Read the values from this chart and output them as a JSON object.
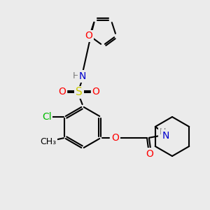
{
  "bg_color": "#ebebeb",
  "bond_color": "#000000",
  "colors": {
    "O": "#ff0000",
    "N": "#0000cc",
    "S": "#cccc00",
    "Cl": "#00bb00",
    "H": "#7a7a7a",
    "C": "#000000"
  },
  "font_size": 9,
  "line_width": 1.5,
  "figsize": [
    3.0,
    3.0
  ],
  "dpi": 100
}
